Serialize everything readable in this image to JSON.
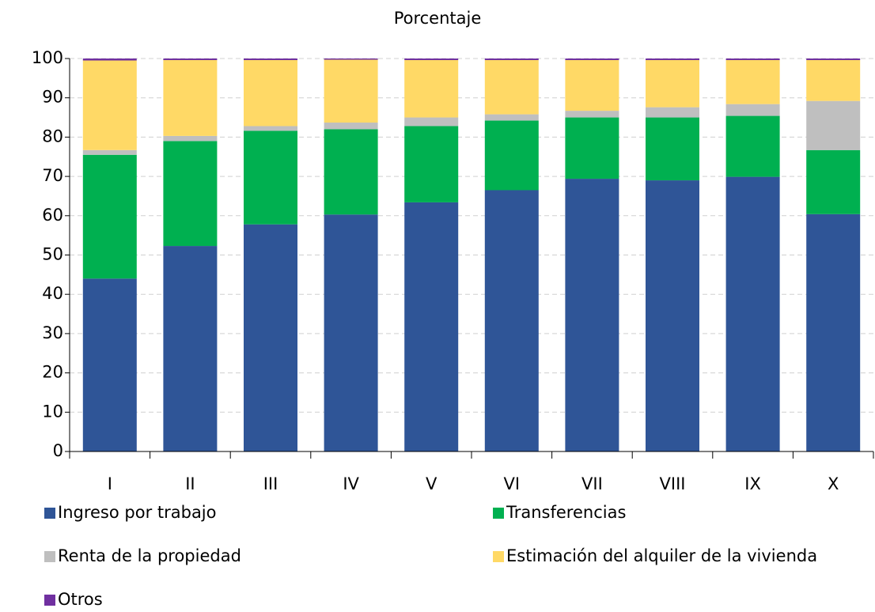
{
  "chart_data": {
    "type": "stacked_bar",
    "title": "Porcentaje",
    "categories": [
      "I",
      "II",
      "III",
      "IV",
      "V",
      "VI",
      "VII",
      "VIII",
      "IX",
      "X"
    ],
    "series": [
      {
        "name": "Ingreso por trabajo",
        "color": "#2f5597",
        "values": [
          44,
          52.3,
          57.8,
          60.3,
          63.4,
          66.5,
          69.4,
          69,
          69.9,
          60.4
        ]
      },
      {
        "name": "Transferencias",
        "color": "#00b050",
        "values": [
          31.5,
          26.7,
          23.8,
          21.7,
          19.4,
          17.7,
          15.6,
          16,
          15.5,
          16.3
        ]
      },
      {
        "name": "Renta de la propiedad",
        "color": "#bfbfbf",
        "values": [
          1.2,
          1.3,
          1.2,
          1.7,
          2.2,
          1.6,
          1.7,
          2.6,
          3,
          12.5
        ]
      },
      {
        "name": "Estimación del alquiler de la vivienda",
        "color": "#ffd966",
        "values": [
          22.8,
          19.3,
          16.8,
          16,
          14.6,
          13.8,
          12.9,
          12,
          11.2,
          10.4
        ]
      },
      {
        "name": "Otros",
        "color": "#7030a0",
        "values": [
          0.5,
          0.4,
          0.4,
          0.3,
          0.4,
          0.4,
          0.4,
          0.4,
          0.4,
          0.4
        ]
      }
    ],
    "ylim": [
      0,
      100
    ],
    "yticks": [
      0,
      10,
      20,
      30,
      40,
      50,
      60,
      70,
      80,
      90,
      100
    ],
    "grid": true
  }
}
